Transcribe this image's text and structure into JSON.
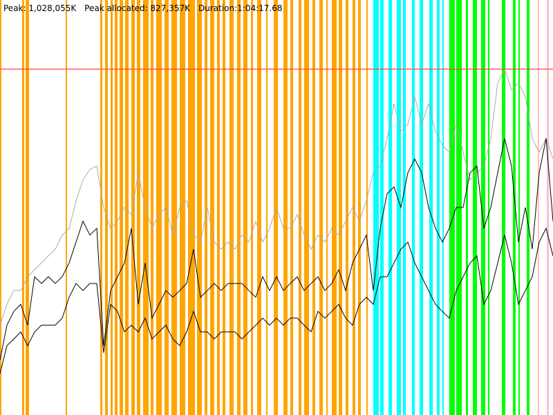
{
  "chart_data": {
    "type": "line",
    "labels": [
      "Peak: 1,028,055K",
      "Peak allocated: 827,357K",
      "Duration:1:04:17.68"
    ],
    "xlim": [
      0,
      800
    ],
    "ylim": [
      0,
      1233666
    ],
    "x": [
      0,
      10,
      20,
      30,
      40,
      50,
      60,
      70,
      80,
      90,
      100,
      110,
      120,
      130,
      140,
      150,
      160,
      170,
      180,
      190,
      200,
      210,
      220,
      230,
      240,
      250,
      260,
      270,
      280,
      290,
      300,
      310,
      320,
      330,
      340,
      350,
      360,
      370,
      380,
      390,
      400,
      410,
      420,
      430,
      440,
      450,
      460,
      470,
      480,
      490,
      500,
      510,
      520,
      530,
      540,
      550,
      560,
      570,
      580,
      590,
      600,
      610,
      620,
      630,
      640,
      650,
      660,
      670,
      680,
      690,
      700,
      710,
      720,
      730,
      740,
      750,
      760,
      770,
      780,
      790,
      800
    ],
    "series": [
      {
        "color": "#aaaaaa",
        "values": [
          267000,
          329000,
          370000,
          370000,
          411000,
          432000,
          452000,
          473000,
          493000,
          535000,
          555000,
          637000,
          699000,
          730000,
          740000,
          617000,
          555000,
          576000,
          617000,
          596000,
          720000,
          617000,
          555000,
          596000,
          617000,
          535000,
          617000,
          637000,
          535000,
          514000,
          617000,
          514000,
          493000,
          514000,
          493000,
          535000,
          514000,
          576000,
          514000,
          555000,
          617000,
          555000,
          555000,
          596000,
          535000,
          493000,
          535000,
          514000,
          555000,
          535000,
          576000,
          617000,
          576000,
          637000,
          720000,
          740000,
          822000,
          925000,
          843000,
          864000,
          946000,
          864000,
          925000,
          843000,
          802000,
          781000,
          864000,
          781000,
          699000,
          720000,
          740000,
          822000,
          987000,
          1028000,
          966000,
          987000,
          946000,
          822000,
          781000,
          822000,
          761000
        ]
      },
      {
        "color": "#000000",
        "values": [
          164000,
          267000,
          308000,
          329000,
          267000,
          411000,
          391000,
          411000,
          391000,
          411000,
          452000,
          514000,
          576000,
          535000,
          555000,
          206000,
          370000,
          411000,
          452000,
          555000,
          329000,
          452000,
          288000,
          329000,
          370000,
          350000,
          370000,
          391000,
          493000,
          350000,
          370000,
          391000,
          370000,
          391000,
          391000,
          391000,
          370000,
          350000,
          411000,
          370000,
          411000,
          370000,
          391000,
          411000,
          370000,
          391000,
          411000,
          370000,
          391000,
          432000,
          370000,
          452000,
          493000,
          535000,
          370000,
          555000,
          658000,
          678000,
          617000,
          720000,
          761000,
          720000,
          617000,
          555000,
          514000,
          555000,
          617000,
          617000,
          720000,
          740000,
          555000,
          617000,
          720000,
          822000,
          740000,
          514000,
          617000,
          493000,
          720000,
          822000,
          576000
        ]
      },
      {
        "color": "#000000",
        "values": [
          123000,
          206000,
          226000,
          247000,
          206000,
          247000,
          267000,
          267000,
          267000,
          288000,
          350000,
          391000,
          370000,
          391000,
          391000,
          185000,
          329000,
          308000,
          247000,
          267000,
          247000,
          288000,
          226000,
          247000,
          267000,
          226000,
          206000,
          247000,
          308000,
          247000,
          247000,
          226000,
          247000,
          247000,
          247000,
          226000,
          247000,
          267000,
          288000,
          267000,
          288000,
          267000,
          288000,
          288000,
          267000,
          247000,
          308000,
          288000,
          308000,
          329000,
          288000,
          267000,
          329000,
          350000,
          329000,
          411000,
          411000,
          452000,
          493000,
          514000,
          452000,
          411000,
          370000,
          329000,
          308000,
          288000,
          370000,
          411000,
          452000,
          473000,
          329000,
          370000,
          452000,
          535000,
          452000,
          329000,
          370000,
          411000,
          514000,
          555000,
          473000
        ]
      }
    ],
    "reference_line": {
      "value": 1028055,
      "color": "#ff4040"
    },
    "bands": [
      {
        "color": "#ffa500",
        "ranges": [
          [
            0,
            2
          ],
          [
            32,
            35
          ],
          [
            37,
            42
          ],
          [
            95,
            97
          ],
          [
            145,
            148
          ],
          [
            152,
            156
          ],
          [
            160,
            163
          ],
          [
            166,
            170
          ],
          [
            173,
            178
          ],
          [
            181,
            186
          ],
          [
            190,
            195
          ],
          [
            198,
            203
          ],
          [
            207,
            215
          ],
          [
            218,
            222
          ],
          [
            226,
            234
          ],
          [
            238,
            244
          ],
          [
            248,
            256
          ],
          [
            260,
            268
          ],
          [
            272,
            282
          ],
          [
            285,
            292
          ],
          [
            296,
            300
          ],
          [
            304,
            310
          ],
          [
            314,
            318
          ],
          [
            322,
            326
          ],
          [
            332,
            338
          ],
          [
            343,
            348
          ],
          [
            352,
            358
          ],
          [
            363,
            366
          ],
          [
            372,
            378
          ],
          [
            385,
            387
          ],
          [
            396,
            402
          ],
          [
            410,
            416
          ],
          [
            420,
            424
          ],
          [
            432,
            436
          ],
          [
            440,
            447
          ],
          [
            452,
            456
          ],
          [
            462,
            467
          ],
          [
            472,
            474
          ],
          [
            480,
            487
          ],
          [
            490,
            495
          ],
          [
            500,
            504
          ],
          [
            510,
            514
          ],
          [
            518,
            522
          ],
          [
            530,
            532
          ]
        ]
      },
      {
        "color": "#00ffff",
        "ranges": [
          [
            540,
            548
          ],
          [
            550,
            555
          ],
          [
            562,
            567
          ],
          [
            574,
            580
          ],
          [
            583,
            587
          ],
          [
            596,
            600
          ],
          [
            607,
            612
          ],
          [
            621,
            626
          ],
          [
            632,
            636
          ],
          [
            640,
            642
          ]
        ]
      },
      {
        "color": "#00ff00",
        "ranges": [
          [
            650,
            658
          ],
          [
            660,
            668
          ],
          [
            674,
            677
          ],
          [
            684,
            690
          ],
          [
            696,
            702
          ],
          [
            706,
            708
          ],
          [
            726,
            731
          ],
          [
            742,
            746
          ],
          [
            750,
            752
          ],
          [
            762,
            766
          ]
        ]
      },
      {
        "color": "#ffc0cb",
        "ranges": [
          [
            778,
            780
          ],
          [
            791,
            794
          ]
        ]
      }
    ]
  }
}
